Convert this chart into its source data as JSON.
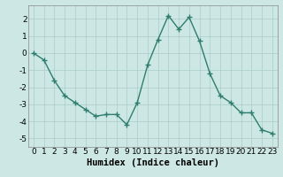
{
  "x": [
    0,
    1,
    2,
    3,
    4,
    5,
    6,
    7,
    8,
    9,
    10,
    11,
    12,
    13,
    14,
    15,
    16,
    17,
    18,
    19,
    20,
    21,
    22,
    23
  ],
  "y": [
    0.0,
    -0.4,
    -1.6,
    -2.5,
    -2.9,
    -3.3,
    -3.7,
    -3.6,
    -3.6,
    -4.2,
    -2.9,
    -0.7,
    0.8,
    2.2,
    1.4,
    2.1,
    0.7,
    -1.2,
    -2.5,
    -2.9,
    -3.5,
    -3.5,
    -4.5,
    -4.7
  ],
  "line_color": "#2e7d6e",
  "marker": "+",
  "marker_size": 4,
  "bg_color": "#cde8e4",
  "grid_color": "#a8ccc8",
  "xlabel": "Humidex (Indice chaleur)",
  "xlim": [
    -0.5,
    23.5
  ],
  "ylim": [
    -5.5,
    2.8
  ],
  "yticks": [
    -5,
    -4,
    -3,
    -2,
    -1,
    0,
    1,
    2
  ],
  "xticks": [
    0,
    1,
    2,
    3,
    4,
    5,
    6,
    7,
    8,
    9,
    10,
    11,
    12,
    13,
    14,
    15,
    16,
    17,
    18,
    19,
    20,
    21,
    22,
    23
  ],
  "xtick_labels": [
    "0",
    "1",
    "2",
    "3",
    "4",
    "5",
    "6",
    "7",
    "8",
    "9",
    "10",
    "11",
    "12",
    "13",
    "14",
    "15",
    "16",
    "17",
    "18",
    "19",
    "20",
    "21",
    "22",
    "23"
  ],
  "xlabel_fontsize": 7.5,
  "tick_fontsize": 6.5,
  "linewidth": 1.0,
  "marker_edge_width": 1.0
}
